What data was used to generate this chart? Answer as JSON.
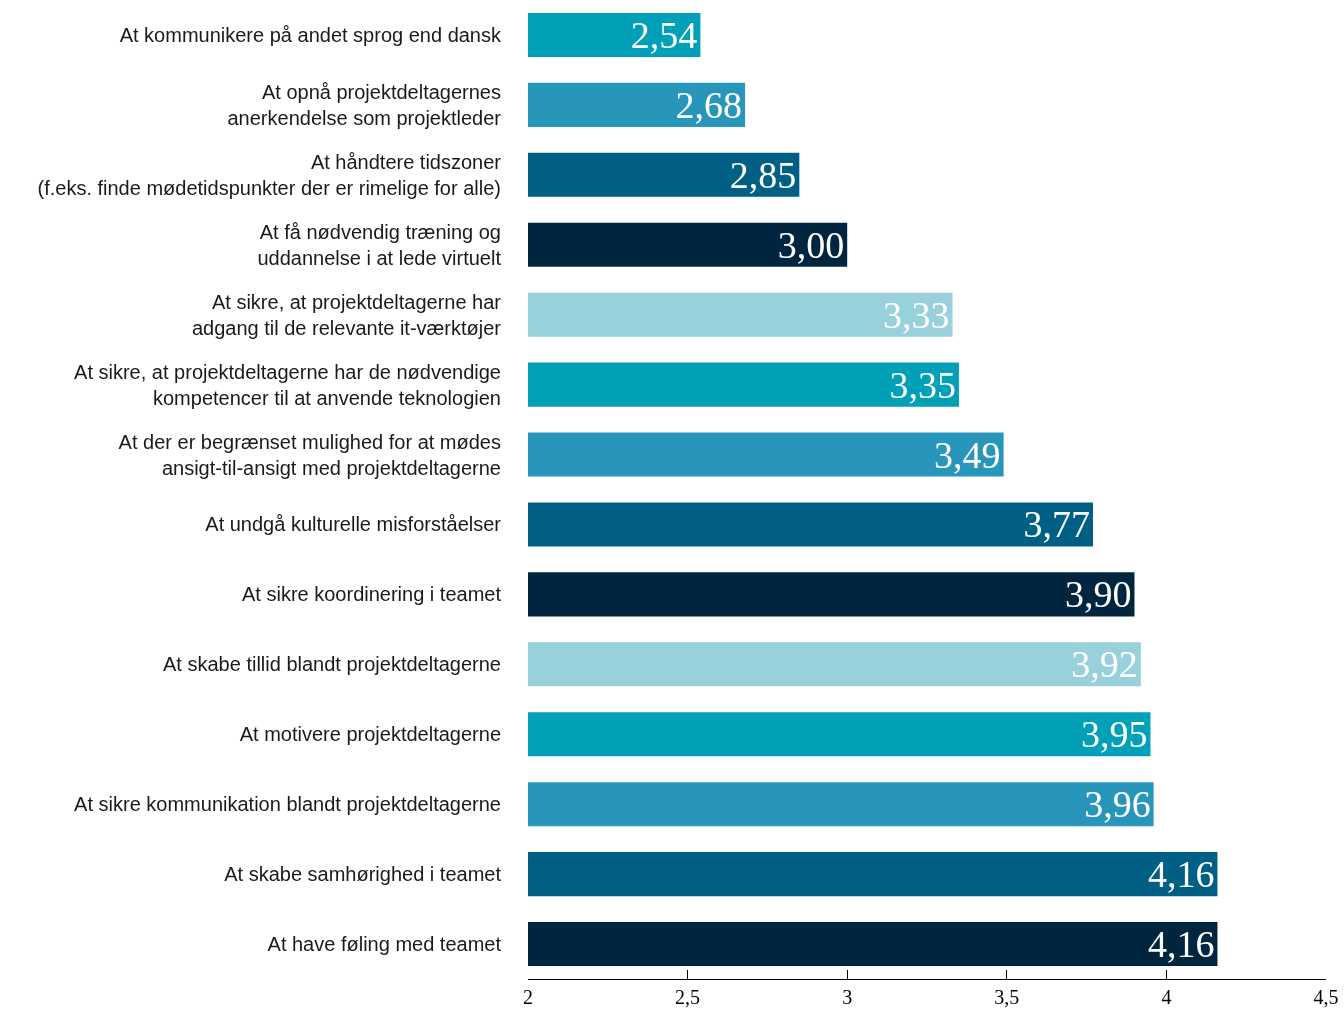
{
  "chart_data": {
    "type": "bar",
    "orientation": "horizontal",
    "categories": [
      "At kommunikere på andet sprog end dansk",
      "At opnå projektdeltagernes\nanerkendelse som projektleder",
      "At håndtere tidszoner\n(f.eks. finde mødetidspunkter der er rimelige for alle)",
      "At få nødvendig træning og\nuddannelse i at lede virtuelt",
      "At sikre, at projektdeltagerne har\nadgang til de relevante it-værktøjer",
      "At sikre, at projektdeltagerne har de nødvendige\nkompetencer til at anvende teknologien",
      "At der er begrænset mulighed for at mødes\nansigt-til-ansigt med projektdeltagerne",
      "At undgå kulturelle misforståelser",
      "At sikre koordinering i teamet",
      "At skabe tillid blandt projektdeltagerne",
      "At motivere projektdeltagerne",
      "At sikre kommunikation blandt projektdeltagerne",
      "At skabe samhørighed i teamet",
      "At have føling med teamet"
    ],
    "values": [
      2.54,
      2.68,
      2.85,
      3.0,
      3.33,
      3.35,
      3.49,
      3.77,
      3.9,
      3.92,
      3.95,
      3.96,
      4.16,
      4.16
    ],
    "value_labels": [
      "2,54",
      "2,68",
      "2,85",
      "3,00",
      "3,33",
      "3,35",
      "3,49",
      "3,77",
      "3,90",
      "3,92",
      "3,95",
      "3,96",
      "4,16",
      "4,16"
    ],
    "colors": [
      "#00a0b8",
      "#2896bb",
      "#005f85",
      "#00263f",
      "#98d0dc",
      "#00a0b8",
      "#2896bb",
      "#005f85",
      "#00263f",
      "#98d0dc",
      "#00a0b8",
      "#2896bb",
      "#005f85",
      "#00263f"
    ],
    "xlim": [
      2,
      4.5
    ],
    "xticks": [
      2,
      {
        "value": 2.5,
        "label": "2,5"
      },
      3,
      {
        "value": 3.5,
        "label": "3,5"
      },
      4,
      {
        "value": 4.5,
        "label": "4,5"
      }
    ],
    "grid": false
  }
}
